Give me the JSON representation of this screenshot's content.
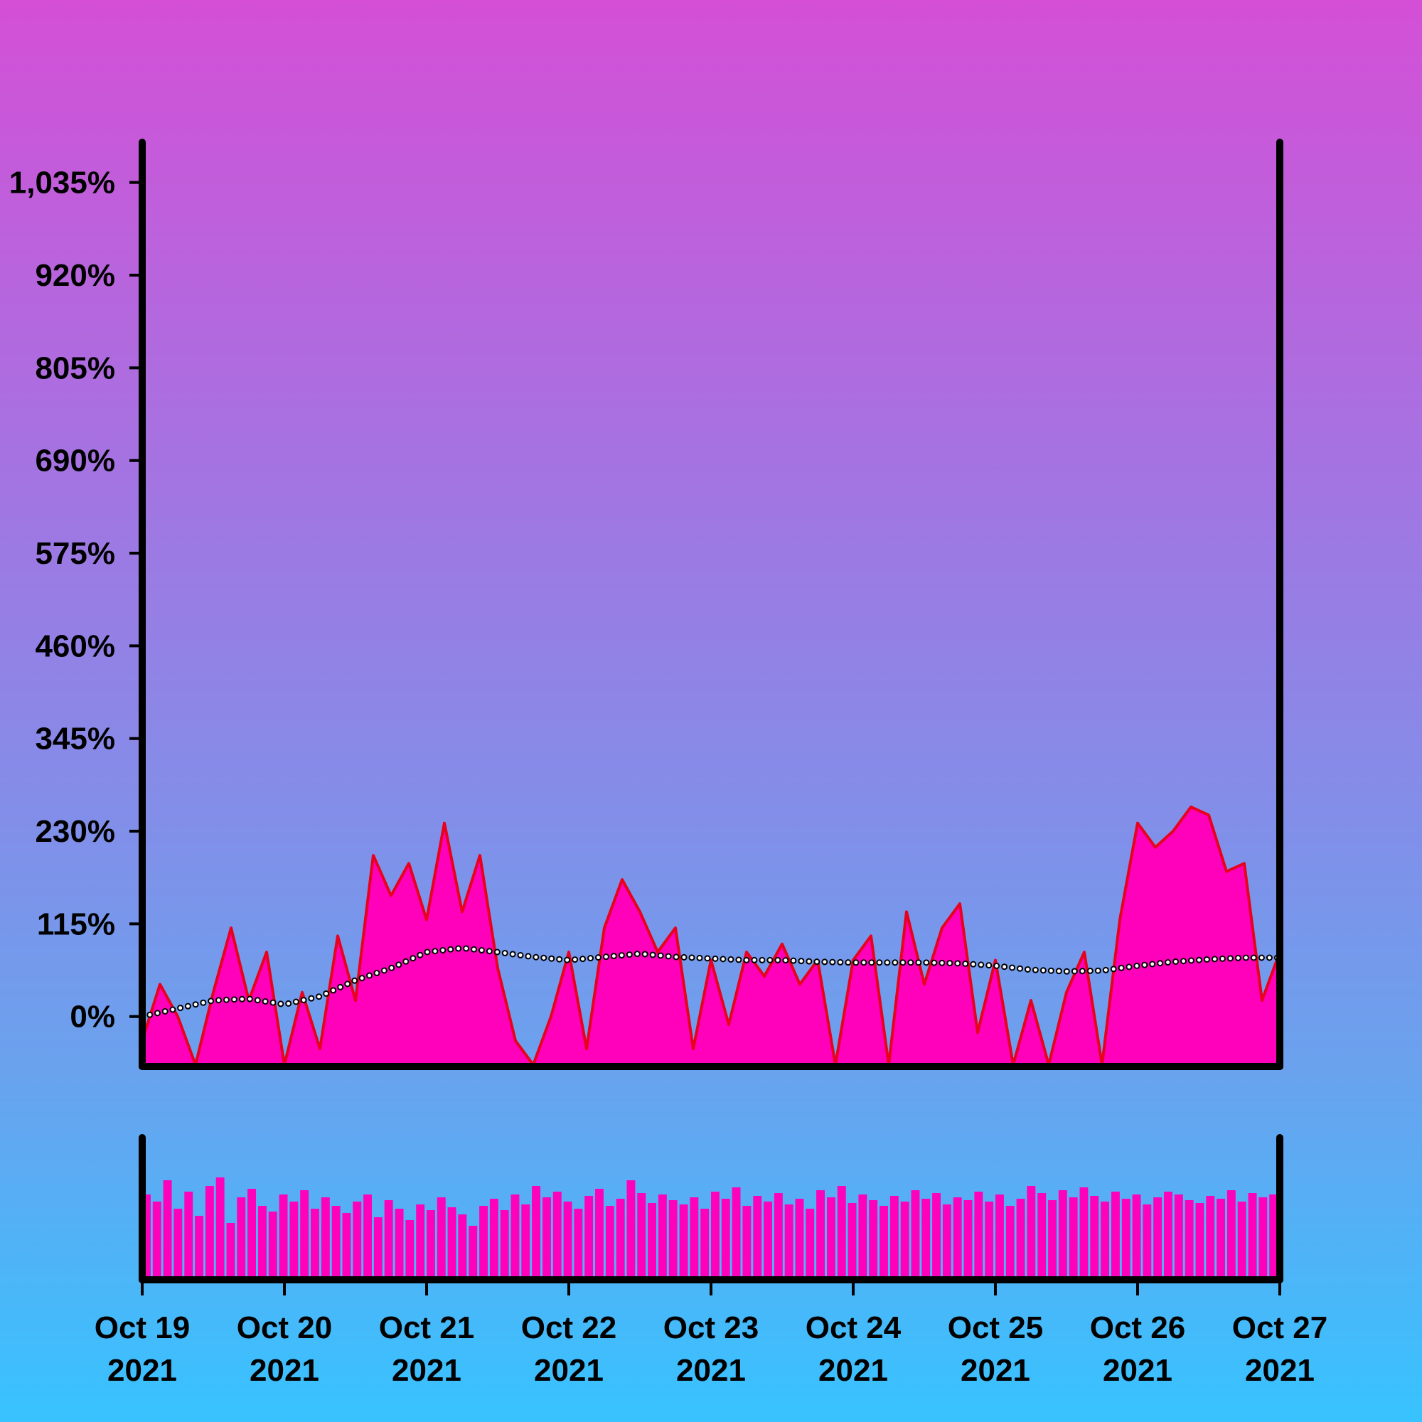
{
  "chart_data": {
    "type": "area",
    "x_start": "2021-10-19",
    "x_end": "2021-10-27",
    "x_ticks": [
      {
        "line1": "Oct 19",
        "line2": "2021"
      },
      {
        "line1": "Oct 20",
        "line2": "2021"
      },
      {
        "line1": "Oct 21",
        "line2": "2021"
      },
      {
        "line1": "Oct 22",
        "line2": "2021"
      },
      {
        "line1": "Oct 23",
        "line2": "2021"
      },
      {
        "line1": "Oct 24",
        "line2": "2021"
      },
      {
        "line1": "Oct 25",
        "line2": "2021"
      },
      {
        "line1": "Oct 26",
        "line2": "2021"
      },
      {
        "line1": "Oct 27",
        "line2": "2021"
      }
    ],
    "y_ticks": [
      "0%",
      "115%",
      "230%",
      "345%",
      "460%",
      "575%",
      "690%",
      "805%",
      "920%",
      "1,035%"
    ],
    "y_tick_values": [
      0,
      115,
      230,
      345,
      460,
      575,
      690,
      805,
      920,
      1035
    ],
    "ylim": [
      -62,
      1085
    ],
    "series": [
      {
        "type": "area",
        "color": "#ff00bb",
        "line_color": "#e8001c",
        "points": [
          [
            "2021-10-19T00:00",
            -30
          ],
          [
            "2021-10-19T03:00",
            40
          ],
          [
            "2021-10-19T06:00",
            0
          ],
          [
            "2021-10-19T09:00",
            -60
          ],
          [
            "2021-10-19T12:00",
            30
          ],
          [
            "2021-10-19T15:00",
            110
          ],
          [
            "2021-10-19T18:00",
            20
          ],
          [
            "2021-10-19T21:00",
            80
          ],
          [
            "2021-10-20T00:00",
            -60
          ],
          [
            "2021-10-20T03:00",
            30
          ],
          [
            "2021-10-20T06:00",
            -40
          ],
          [
            "2021-10-20T09:00",
            100
          ],
          [
            "2021-10-20T12:00",
            20
          ],
          [
            "2021-10-20T15:00",
            200
          ],
          [
            "2021-10-20T18:00",
            150
          ],
          [
            "2021-10-20T21:00",
            190
          ],
          [
            "2021-10-21T00:00",
            120
          ],
          [
            "2021-10-21T03:00",
            240
          ],
          [
            "2021-10-21T06:00",
            130
          ],
          [
            "2021-10-21T09:00",
            200
          ],
          [
            "2021-10-21T12:00",
            60
          ],
          [
            "2021-10-21T15:00",
            -30
          ],
          [
            "2021-10-21T18:00",
            -60
          ],
          [
            "2021-10-21T21:00",
            0
          ],
          [
            "2021-10-22T00:00",
            80
          ],
          [
            "2021-10-22T03:00",
            -40
          ],
          [
            "2021-10-22T06:00",
            110
          ],
          [
            "2021-10-22T09:00",
            170
          ],
          [
            "2021-10-22T12:00",
            130
          ],
          [
            "2021-10-22T15:00",
            80
          ],
          [
            "2021-10-22T18:00",
            110
          ],
          [
            "2021-10-22T21:00",
            -40
          ],
          [
            "2021-10-23T00:00",
            70
          ],
          [
            "2021-10-23T03:00",
            -10
          ],
          [
            "2021-10-23T06:00",
            80
          ],
          [
            "2021-10-23T09:00",
            50
          ],
          [
            "2021-10-23T12:00",
            90
          ],
          [
            "2021-10-23T15:00",
            40
          ],
          [
            "2021-10-23T18:00",
            70
          ],
          [
            "2021-10-23T21:00",
            -60
          ],
          [
            "2021-10-24T00:00",
            70
          ],
          [
            "2021-10-24T03:00",
            100
          ],
          [
            "2021-10-24T06:00",
            -60
          ],
          [
            "2021-10-24T09:00",
            130
          ],
          [
            "2021-10-24T12:00",
            40
          ],
          [
            "2021-10-24T15:00",
            110
          ],
          [
            "2021-10-24T18:00",
            140
          ],
          [
            "2021-10-24T21:00",
            -20
          ],
          [
            "2021-10-25T00:00",
            70
          ],
          [
            "2021-10-25T03:00",
            -60
          ],
          [
            "2021-10-25T06:00",
            20
          ],
          [
            "2021-10-25T09:00",
            -60
          ],
          [
            "2021-10-25T12:00",
            30
          ],
          [
            "2021-10-25T15:00",
            80
          ],
          [
            "2021-10-25T18:00",
            -60
          ],
          [
            "2021-10-25T21:00",
            120
          ],
          [
            "2021-10-26T00:00",
            240
          ],
          [
            "2021-10-26T03:00",
            210
          ],
          [
            "2021-10-26T06:00",
            230
          ],
          [
            "2021-10-26T09:00",
            260
          ],
          [
            "2021-10-26T12:00",
            250
          ],
          [
            "2021-10-26T15:00",
            180
          ],
          [
            "2021-10-26T18:00",
            190
          ],
          [
            "2021-10-26T21:00",
            20
          ],
          [
            "2021-10-27T00:00",
            80
          ]
        ]
      },
      {
        "type": "line",
        "style": "dotted",
        "color": "#ffffff",
        "points": [
          [
            "2021-10-19T00:00",
            0
          ],
          [
            "2021-10-19T06:00",
            10
          ],
          [
            "2021-10-19T12:00",
            20
          ],
          [
            "2021-10-19T18:00",
            22
          ],
          [
            "2021-10-20T00:00",
            15
          ],
          [
            "2021-10-20T06:00",
            25
          ],
          [
            "2021-10-20T12:00",
            45
          ],
          [
            "2021-10-20T18:00",
            60
          ],
          [
            "2021-10-21T00:00",
            80
          ],
          [
            "2021-10-21T06:00",
            85
          ],
          [
            "2021-10-21T12:00",
            80
          ],
          [
            "2021-10-21T18:00",
            74
          ],
          [
            "2021-10-22T00:00",
            70
          ],
          [
            "2021-10-22T06:00",
            74
          ],
          [
            "2021-10-22T12:00",
            78
          ],
          [
            "2021-10-22T18:00",
            74
          ],
          [
            "2021-10-23T00:00",
            72
          ],
          [
            "2021-10-23T06:00",
            70
          ],
          [
            "2021-10-23T12:00",
            70
          ],
          [
            "2021-10-23T18:00",
            68
          ],
          [
            "2021-10-24T00:00",
            67
          ],
          [
            "2021-10-24T06:00",
            67
          ],
          [
            "2021-10-24T12:00",
            67
          ],
          [
            "2021-10-24T18:00",
            66
          ],
          [
            "2021-10-25T00:00",
            63
          ],
          [
            "2021-10-25T06:00",
            58
          ],
          [
            "2021-10-25T12:00",
            56
          ],
          [
            "2021-10-25T18:00",
            57
          ],
          [
            "2021-10-26T00:00",
            63
          ],
          [
            "2021-10-26T06:00",
            68
          ],
          [
            "2021-10-26T12:00",
            71
          ],
          [
            "2021-10-26T18:00",
            73
          ],
          [
            "2021-10-27T00:00",
            73
          ]
        ]
      }
    ],
    "volume": {
      "type": "bar",
      "color": "#ff00bb",
      "ylim": [
        0,
        1
      ],
      "values": [
        0.6,
        0.55,
        0.7,
        0.5,
        0.62,
        0.45,
        0.66,
        0.72,
        0.4,
        0.58,
        0.64,
        0.52,
        0.48,
        0.6,
        0.55,
        0.63,
        0.5,
        0.58,
        0.52,
        0.47,
        0.55,
        0.6,
        0.44,
        0.56,
        0.5,
        0.42,
        0.53,
        0.49,
        0.58,
        0.51,
        0.46,
        0.38,
        0.52,
        0.57,
        0.49,
        0.6,
        0.53,
        0.66,
        0.58,
        0.62,
        0.55,
        0.5,
        0.59,
        0.64,
        0.52,
        0.57,
        0.7,
        0.61,
        0.54,
        0.6,
        0.56,
        0.53,
        0.58,
        0.5,
        0.62,
        0.57,
        0.65,
        0.52,
        0.59,
        0.55,
        0.61,
        0.53,
        0.57,
        0.5,
        0.63,
        0.58,
        0.66,
        0.54,
        0.6,
        0.56,
        0.52,
        0.59,
        0.55,
        0.63,
        0.57,
        0.61,
        0.53,
        0.58,
        0.56,
        0.62,
        0.55,
        0.6,
        0.52,
        0.57,
        0.66,
        0.61,
        0.56,
        0.63,
        0.58,
        0.65,
        0.59,
        0.55,
        0.62,
        0.57,
        0.6,
        0.53,
        0.58,
        0.62,
        0.6,
        0.56,
        0.54,
        0.59,
        0.57,
        0.63,
        0.55,
        0.61,
        0.58,
        0.6
      ]
    }
  }
}
